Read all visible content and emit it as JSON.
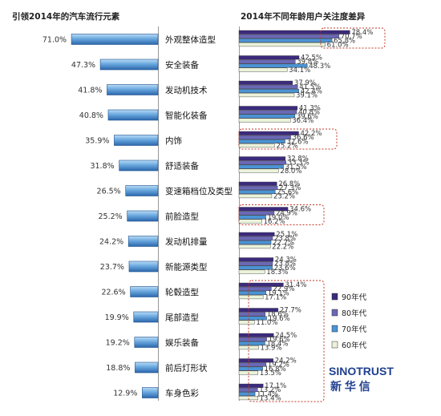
{
  "chart_data": [
    {
      "type": "bar",
      "orientation": "horizontal",
      "title": "引领2014年的汽车流行元素",
      "categories": [
        "外观整体造型",
        "安全装备",
        "发动机技术",
        "智能化装备",
        "内饰",
        "舒适装备",
        "变速箱档位及类型",
        "前脸造型",
        "发动机排量",
        "新能源类型",
        "轮毂造型",
        "尾部造型",
        "娱乐装备",
        "前后灯形状",
        "车身色彩"
      ],
      "values": [
        71.0,
        47.3,
        41.8,
        40.8,
        35.9,
        31.8,
        26.5,
        25.2,
        24.2,
        23.7,
        22.6,
        19.9,
        19.2,
        18.8,
        12.9
      ],
      "value_labels": [
        "71.0%",
        "47.3%",
        "41.8%",
        "40.8%",
        "35.9%",
        "31.8%",
        "26.5%",
        "25.2%",
        "24.2%",
        "23.7%",
        "22.6%",
        "19.9%",
        "19.2%",
        "18.8%",
        "12.9%"
      ],
      "xlim": [
        0,
        75
      ]
    },
    {
      "type": "bar",
      "orientation": "horizontal",
      "title": "2014年不同年龄用户关注度差异",
      "categories": [
        "外观整体造型",
        "安全装备",
        "发动机技术",
        "智能化装备",
        "内饰",
        "舒适装备",
        "变速箱档位及类型",
        "前脸造型",
        "发动机排量",
        "新能源类型",
        "轮毂造型",
        "尾部造型",
        "娱乐装备",
        "前后灯形状",
        "车身色彩"
      ],
      "series": [
        {
          "name": "90年代",
          "color": "#3b2a7d",
          "values": [
            78.4,
            42.5,
            37.9,
            41.3,
            42.2,
            32.8,
            26.8,
            34.6,
            25.1,
            24.3,
            31.4,
            27.7,
            24.5,
            24.2,
            17.1
          ]
        },
        {
          "name": "80年代",
          "color": "#6a68b6",
          "values": [
            70.7,
            39.8,
            41.5,
            40.8,
            36.6,
            33.3,
            27.3,
            24.9,
            23.8,
            23.8,
            22.9,
            18.6,
            19.6,
            19.2,
            13.2
          ]
        },
        {
          "name": "70年代",
          "color": "#4b93d4",
          "values": [
            65.8,
            48.3,
            42.4,
            39.6,
            32.6,
            31.5,
            25.6,
            19.0,
            22.7,
            23.6,
            19.1,
            19.6,
            18.4,
            16.8,
            11.4
          ]
        },
        {
          "name": "60年代",
          "color": "#eaf3da",
          "values": [
            61.0,
            34.1,
            39.1,
            36.4,
            25.2,
            28.0,
            23.2,
            16.2,
            22.2,
            18.3,
            17.1,
            11.0,
            13.9,
            13.5,
            13.4
          ]
        }
      ],
      "xlim": [
        0,
        85
      ]
    }
  ],
  "legend": {
    "items": [
      "90年代",
      "80年代",
      "70年代",
      "60年代"
    ],
    "placement": "right"
  },
  "brand": {
    "name": "SINOTRUST",
    "chinese": "新 华 信"
  },
  "colors": {
    "left_bar_top": "#9fcdf0",
    "left_bar_bottom": "#2f6fb6",
    "left_bar_stroke": "#1c4f8a",
    "highlight_box": "#c0392b"
  }
}
